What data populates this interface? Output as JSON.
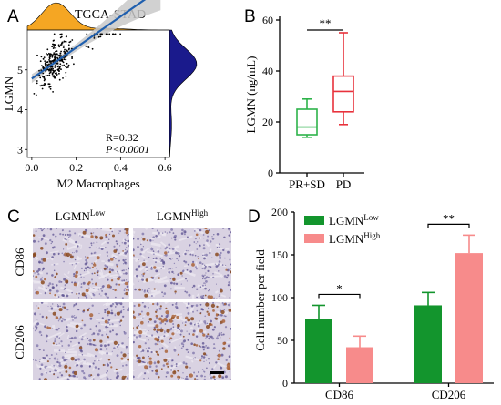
{
  "panels": {
    "A": {
      "label": "A",
      "title": "TGCA-STAD",
      "chart_data": {
        "type": "scatter",
        "xlabel": "M2 Macrophages",
        "ylabel": "LGMN",
        "xlim": [
          -0.02,
          0.62
        ],
        "ylim": [
          2.8,
          6.0
        ],
        "xticks": [
          "0.0",
          "0.2",
          "0.4",
          "0.6"
        ],
        "yticks": [
          "3",
          "4",
          "5"
        ],
        "regression": {
          "intercept": 4.78,
          "slope": 3.9
        },
        "annotation_r": "R=0.32",
        "annotation_p": "P<0.0001",
        "colors": {
          "line": "#1f5fae",
          "ci": "#c9c9c9",
          "top_density": "#f5a623",
          "right_density": "#1a1a8c",
          "points": "#000000"
        }
      }
    },
    "B": {
      "label": "B",
      "chart_data": {
        "type": "box",
        "ylabel": "LGMN (ng/mL)",
        "ylim": [
          0,
          60
        ],
        "yticks": [
          "0",
          "20",
          "40",
          "60"
        ],
        "categories": [
          "PR+SD",
          "PD"
        ],
        "boxes": [
          {
            "name": "PR+SD",
            "min": 14,
            "q1": 15,
            "median": 18,
            "q3": 25,
            "max": 29,
            "color": "#2db34a"
          },
          {
            "name": "PD",
            "min": 19,
            "q1": 24,
            "median": 32,
            "q3": 38,
            "max": 55,
            "color": "#e8323c"
          }
        ],
        "significance": "**"
      }
    },
    "C": {
      "label": "C",
      "col1": "LGMN",
      "col1_sup": "Low",
      "col2": "LGMN",
      "col2_sup": "High",
      "row1": "CD86",
      "row2": "CD206"
    },
    "D": {
      "label": "D",
      "chart_data": {
        "type": "bar",
        "ylabel": "Cell number per field",
        "ylim": [
          0,
          200
        ],
        "yticks": [
          "0",
          "50",
          "100",
          "150",
          "200"
        ],
        "categories": [
          "CD86",
          "CD206"
        ],
        "series": [
          {
            "name": "LGMN",
            "sup": "Low",
            "values": [
              75,
              91
            ],
            "errors": [
              16,
              15
            ],
            "color": "#13952d"
          },
          {
            "name": "LGMN",
            "sup": "High",
            "values": [
              42,
              152
            ],
            "errors": [
              13,
              21
            ],
            "color": "#f78b8b"
          }
        ],
        "significance": [
          "*",
          "**"
        ]
      }
    }
  }
}
